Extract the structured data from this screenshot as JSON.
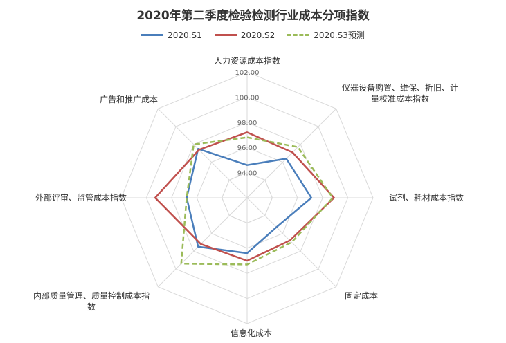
{
  "chart_data": {
    "type": "radar",
    "title": "2020年第二季度检验检测行业成本分项指数",
    "categories": [
      "人力资源成本指数",
      "仪器设备购置、维保、折旧、计量校准成本指数",
      "试剂、耗材成本指数",
      "固定成本",
      "信息化成本",
      "内部质量管理、质量控制成本指数",
      "外部评审、监管成本指数",
      "广告和推广成本"
    ],
    "category_lines": [
      [
        "人力资源成本指数"
      ],
      [
        "仪器设备购置、维保、折旧、计",
        "量校准成本指数"
      ],
      [
        "试剂、耗材成本指数"
      ],
      [
        "固定成本"
      ],
      [
        "信息化成本"
      ],
      [
        "内部质量管理、质量控制成本指",
        "数"
      ],
      [
        "外部评审、监管成本指数"
      ],
      [
        "广告和推广成本"
      ]
    ],
    "ticks": [
      "94.00",
      "96.00",
      "98.00",
      "100.00",
      "102.00"
    ],
    "range": [
      92,
      102
    ],
    "grid": true,
    "legend_position": "top",
    "series": [
      {
        "name": "2020.S1",
        "color": "#4a7ebb",
        "dash": "solid",
        "values": [
          94.6,
          96.4,
          97.1,
          95.3,
          96.4,
          97.5,
          96.8,
          97.5
        ]
      },
      {
        "name": "2020.S2",
        "color": "#c0504d",
        "dash": "solid",
        "values": [
          97.2,
          97.1,
          98.9,
          96.8,
          97.0,
          97.2,
          99.3,
          97.4
        ]
      },
      {
        "name": "2020.S3预测",
        "color": "#9bbb59",
        "dash": "dashed",
        "values": [
          96.8,
          97.7,
          98.8,
          97.0,
          97.3,
          99.4,
          96.8,
          98.0
        ]
      }
    ]
  }
}
